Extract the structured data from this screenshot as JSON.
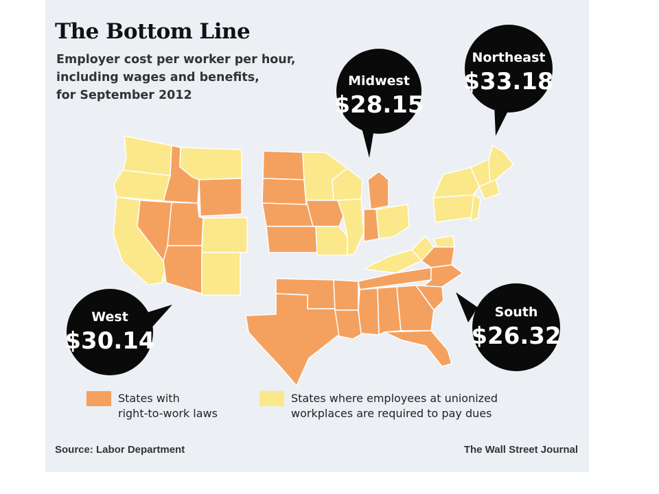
{
  "title": "The Bottom Line",
  "subtitle_lines": [
    "Employer cost per worker per hour,",
    "including wages and benefits,",
    "for September 2012"
  ],
  "colors": {
    "right_to_work": "#f4a160",
    "dues_required": "#fbe88a",
    "state_border": "#ffffff",
    "bubble": "#0a0a0a",
    "background": "#eceff4"
  },
  "regions": [
    {
      "name": "West",
      "value": "$30.14"
    },
    {
      "name": "Midwest",
      "value": "$28.15"
    },
    {
      "name": "Northeast",
      "value": "$33.18"
    },
    {
      "name": "South",
      "value": "$26.32"
    }
  ],
  "legend": [
    {
      "key": "right_to_work",
      "lines": [
        "States with",
        "right-to-work laws"
      ]
    },
    {
      "key": "dues_required",
      "lines": [
        "States where employees at unionized",
        "workplaces are required to pay dues"
      ]
    }
  ],
  "footer": {
    "source": "Source: Labor Department",
    "credit": "The Wall Street Journal"
  }
}
